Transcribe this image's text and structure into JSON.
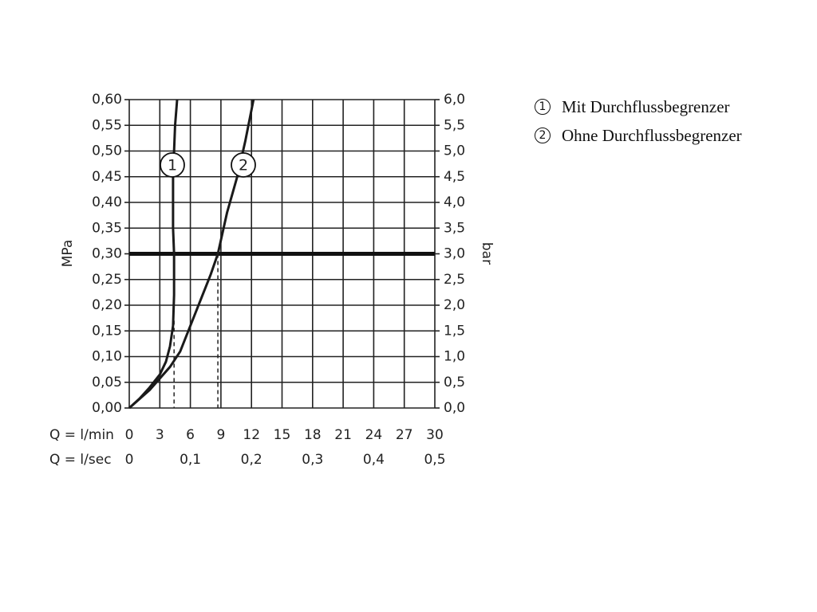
{
  "chart_data": {
    "type": "line",
    "ylabel": "MPa",
    "y2label": "bar",
    "xlabel": "Q = l/min",
    "x2label": "Q = l/sec",
    "xlim": [
      0,
      30
    ],
    "xticks": [
      0,
      3,
      6,
      9,
      12,
      15,
      18,
      21,
      24,
      27,
      30
    ],
    "x2lim": [
      0,
      0.5
    ],
    "x2ticks": [
      0,
      {
        "value": 0.1,
        "label": "0,1"
      },
      {
        "value": 0.2,
        "label": "0,2"
      },
      {
        "value": 0.3,
        "label": "0,3"
      },
      {
        "value": 0.4,
        "label": "0,4"
      },
      {
        "value": 0.5,
        "label": "0,5"
      }
    ],
    "ylim": [
      0,
      0.6
    ],
    "yticks": [
      {
        "value": 0,
        "label": "0,00"
      },
      {
        "value": 0.05,
        "label": "0,05"
      },
      {
        "value": 0.1,
        "label": "0,10"
      },
      {
        "value": 0.15,
        "label": "0,15"
      },
      {
        "value": 0.2,
        "label": "0,20"
      },
      {
        "value": 0.25,
        "label": "0,25"
      },
      {
        "value": 0.3,
        "label": "0,30"
      },
      {
        "value": 0.35,
        "label": "0,35"
      },
      {
        "value": 0.4,
        "label": "0,40"
      },
      {
        "value": 0.45,
        "label": "0,45"
      },
      {
        "value": 0.5,
        "label": "0,50"
      },
      {
        "value": 0.55,
        "label": "0,55"
      },
      {
        "value": 0.6,
        "label": "0,60"
      }
    ],
    "y2lim": [
      0,
      6
    ],
    "y2ticks": [
      {
        "value": 0,
        "label": "0,0"
      },
      {
        "value": 0.5,
        "label": "0,5"
      },
      {
        "value": 1,
        "label": "1,0"
      },
      {
        "value": 1.5,
        "label": "1,5"
      },
      {
        "value": 2,
        "label": "2,0"
      },
      {
        "value": 2.5,
        "label": "2,5"
      },
      {
        "value": 3,
        "label": "3,0"
      },
      {
        "value": 3.5,
        "label": "3,5"
      },
      {
        "value": 4,
        "label": "4,0"
      },
      {
        "value": 4.5,
        "label": "4,5"
      },
      {
        "value": 5,
        "label": "5,0"
      },
      {
        "value": 5.5,
        "label": "5,5"
      },
      {
        "value": 6,
        "label": "6,0"
      }
    ],
    "grid": true,
    "reference_line": 0.3,
    "drop_lines": [
      {
        "x": 4.4,
        "y": 0.17
      },
      {
        "x": 8.7,
        "y": 0.3
      }
    ],
    "series": [
      {
        "name": "Mit Durchflussbegrenzer",
        "label": "1",
        "color": "#1a1a1a",
        "x": [
          0,
          1,
          2,
          3,
          3.6,
          4,
          4.3,
          4.4,
          4.4,
          4.3,
          4.3,
          4.5,
          4.7
        ],
        "values": [
          0,
          0.018,
          0.04,
          0.065,
          0.09,
          0.12,
          0.16,
          0.22,
          0.3,
          0.35,
          0.45,
          0.55,
          0.6
        ]
      },
      {
        "name": "Ohne Durchflussbegrenzer",
        "label": "2",
        "color": "#1a1a1a",
        "x": [
          0,
          2,
          4,
          5,
          5.8,
          7,
          8,
          8.7,
          9.6,
          10.6,
          11.4,
          12.2
        ],
        "values": [
          0,
          0.035,
          0.08,
          0.11,
          0.15,
          0.21,
          0.26,
          0.3,
          0.38,
          0.45,
          0.52,
          0.6
        ]
      }
    ]
  }
}
